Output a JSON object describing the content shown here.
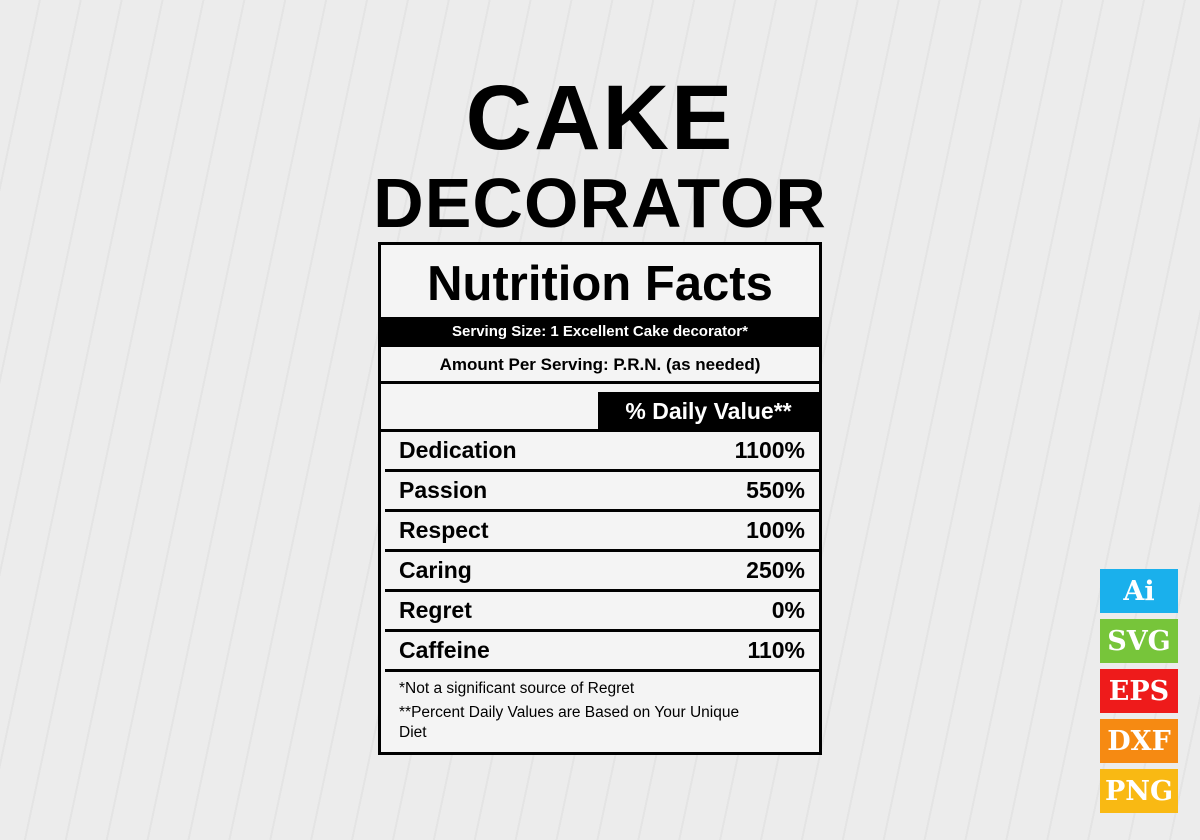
{
  "title": {
    "line1": "CAKE",
    "line2": "DECORATOR"
  },
  "label": {
    "heading": "Nutrition Facts",
    "serving_size": "Serving Size: 1 Excellent Cake decorator*",
    "amount_per_serving": "Amount Per Serving: P.R.N. (as needed)",
    "daily_value_header": "% Daily Value**",
    "rows": [
      {
        "name": "Dedication",
        "value": "1100%"
      },
      {
        "name": "Passion",
        "value": "550%"
      },
      {
        "name": "Respect",
        "value": "100%"
      },
      {
        "name": "Caring",
        "value": "250%"
      },
      {
        "name": "Regret",
        "value": "0%"
      },
      {
        "name": "Caffeine",
        "value": "110%"
      }
    ],
    "footnote1": "*Not a significant source of Regret",
    "footnote2": "**Percent Daily Values are Based on Your Unique Diet"
  },
  "badges": [
    {
      "label": "Ai",
      "color": "#1ab0ec"
    },
    {
      "label": "SVG",
      "color": "#77c53a"
    },
    {
      "label": "EPS",
      "color": "#ee1b1b"
    },
    {
      "label": "DXF",
      "color": "#f68a12"
    },
    {
      "label": "PNG",
      "color": "#f9b913"
    }
  ]
}
